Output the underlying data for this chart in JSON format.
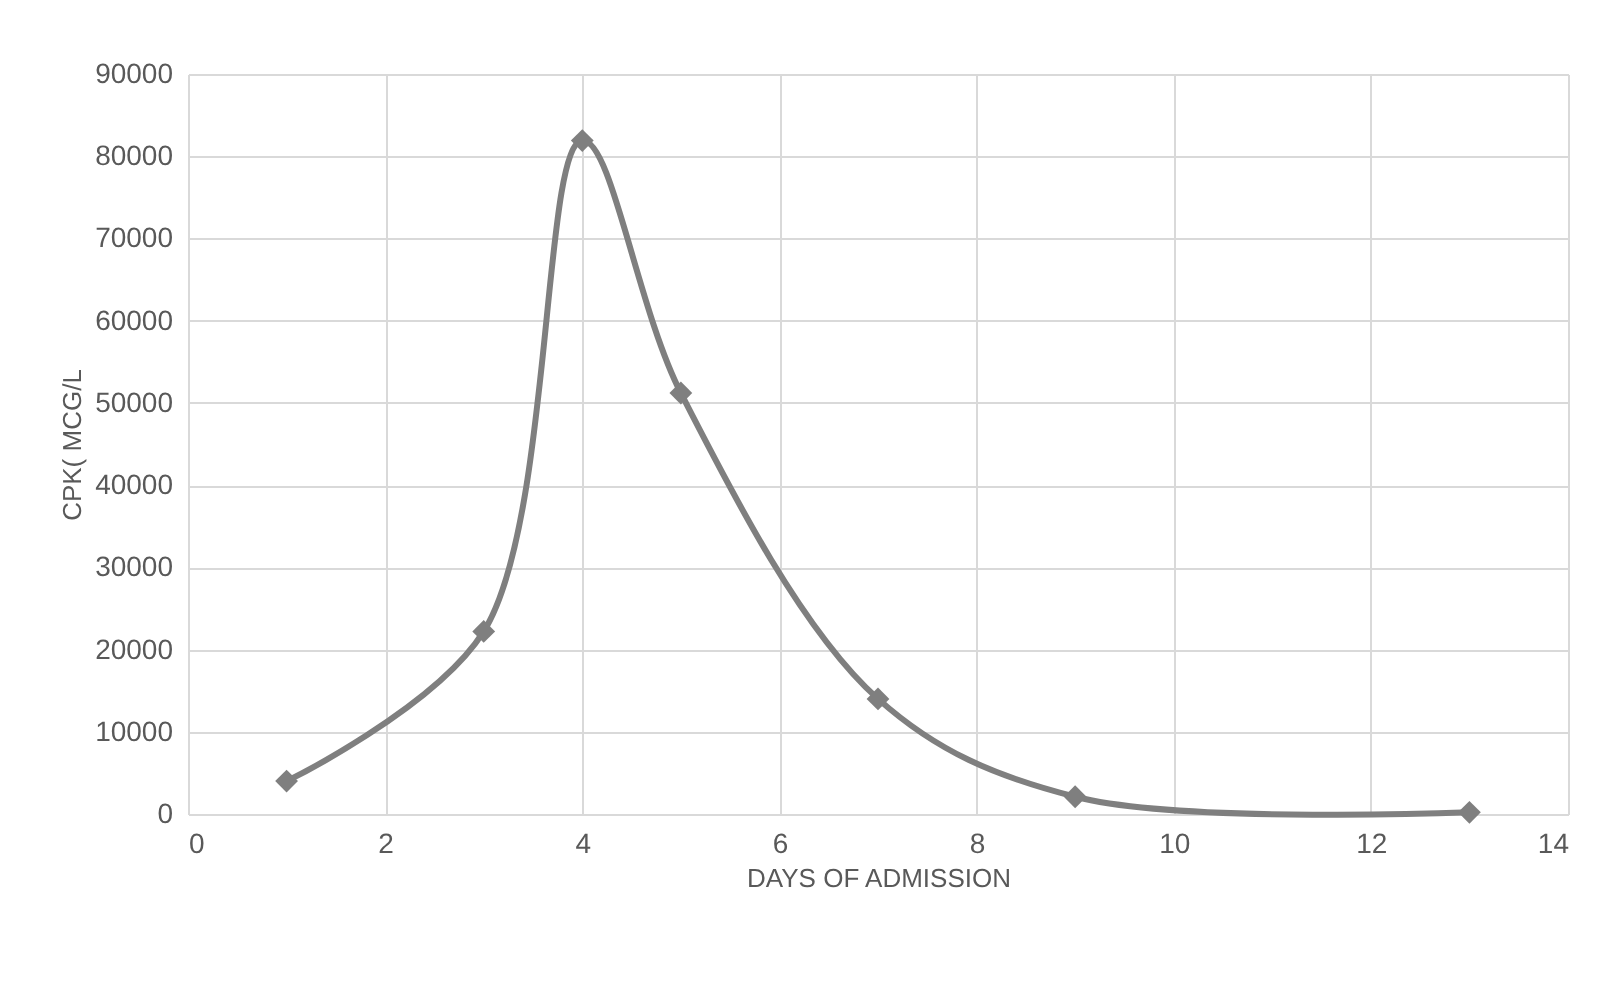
{
  "chart_data": {
    "type": "line",
    "xlabel": "DAYS OF ADMISSION",
    "ylabel": "CPK( MCG/L",
    "x": [
      1,
      3,
      4,
      5,
      7,
      9,
      13
    ],
    "series": [
      {
        "color": "#7f7f7f",
        "values": [
          4000,
          22200,
          81900,
          51200,
          14000,
          2100,
          200
        ]
      }
    ],
    "xlim": [
      0,
      14
    ],
    "xticks": [
      0,
      2,
      4,
      6,
      8,
      10,
      12,
      14
    ],
    "ylim": [
      0,
      90000
    ],
    "yticks": [
      0,
      10000,
      20000,
      30000,
      40000,
      50000,
      60000,
      70000,
      80000,
      90000
    ],
    "grid": true,
    "marker": "diamond",
    "line_style": "solid"
  }
}
